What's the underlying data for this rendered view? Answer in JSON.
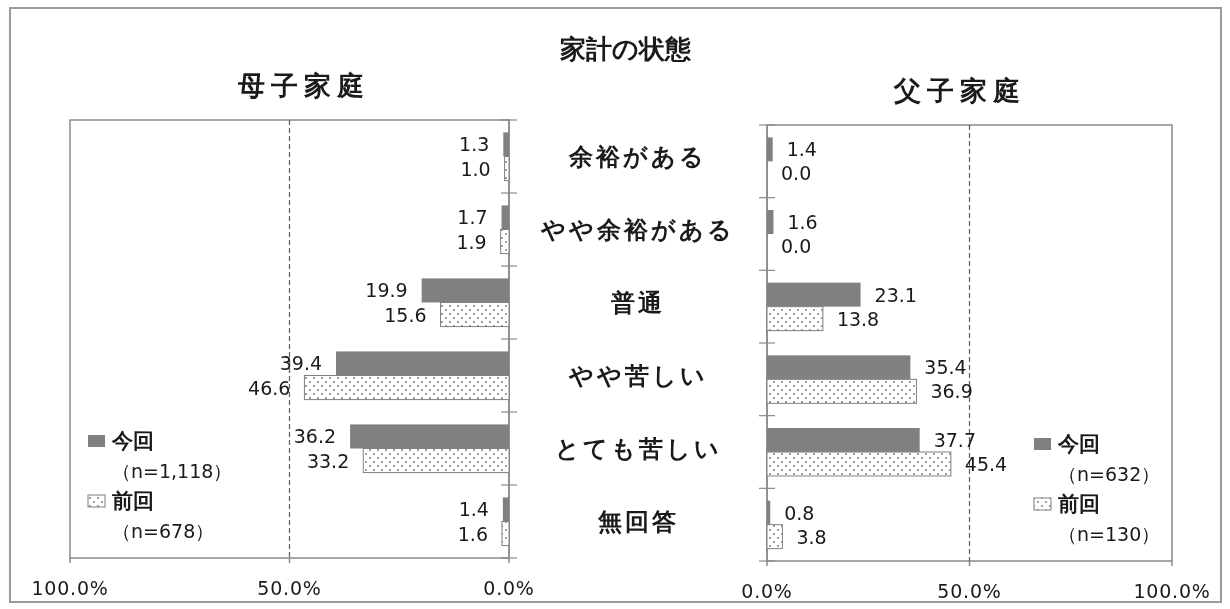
{
  "chart_data": [
    {
      "type": "bar",
      "orientation": "horizontal",
      "title": "家計の状態",
      "subtitle": "母子家庭",
      "categories": [
        "余裕がある",
        "やや余裕がある",
        "普通",
        "やや苦しい",
        "とても苦しい",
        "無回答"
      ],
      "series": [
        {
          "name": "今回（n=1,118）",
          "color": "#808080",
          "values": [
            1.3,
            1.7,
            19.9,
            39.4,
            36.2,
            1.4
          ],
          "value_labels": [
            "1.3",
            "1.7",
            "19.9",
            "39.4",
            "36.2",
            "1.4"
          ]
        },
        {
          "name": "前回（n=678）",
          "color": "#7f7f7f",
          "values": [
            1.0,
            1.9,
            15.6,
            46.6,
            33.2,
            1.6
          ],
          "value_labels": [
            "1.0",
            "1.9",
            "15.6",
            "46.6",
            "33.2",
            "1.6"
          ]
        }
      ],
      "xlim": [
        100,
        0
      ],
      "xticks": [
        {
          "value": 100,
          "label": "100.0%"
        },
        {
          "value": 50,
          "label": "50.0%"
        },
        {
          "value": 0,
          "label": "0.0%"
        }
      ],
      "ref_lines": [
        {
          "axis": "x",
          "value": 50,
          "line_style": "dashed",
          "color": "#666666"
        }
      ],
      "legend": "bottom left"
    },
    {
      "type": "bar",
      "orientation": "horizontal",
      "subtitle": "父子家庭",
      "categories": [
        null,
        null,
        null,
        null,
        null,
        null
      ],
      "tick_labels": "x",
      "series": [
        {
          "name": "今回（n=632）",
          "color": "#808080",
          "values": [
            1.4,
            1.6,
            23.1,
            35.4,
            37.7,
            0.8
          ],
          "value_labels": [
            "1.4",
            "1.6",
            "23.1",
            "35.4",
            "37.7",
            "0.8"
          ]
        },
        {
          "name": "前回（n=130）",
          "color": "#7f7f7f",
          "values": [
            0.0,
            0.0,
            13.8,
            36.9,
            45.4,
            3.8
          ],
          "value_labels": [
            "0.0",
            "0.0",
            "13.8",
            "36.9",
            "45.4",
            "3.8"
          ]
        }
      ],
      "xlim": [
        0,
        100
      ],
      "xticks": [
        {
          "value": 0,
          "label": "0.0%"
        },
        {
          "value": 50,
          "label": "50.0%"
        },
        {
          "value": 100,
          "label": "100.0%"
        }
      ],
      "ref_lines": [
        {
          "axis": "x",
          "value": 50,
          "line_style": "dashed",
          "color": "#666666"
        }
      ],
      "legend": "bottom right"
    }
  ]
}
